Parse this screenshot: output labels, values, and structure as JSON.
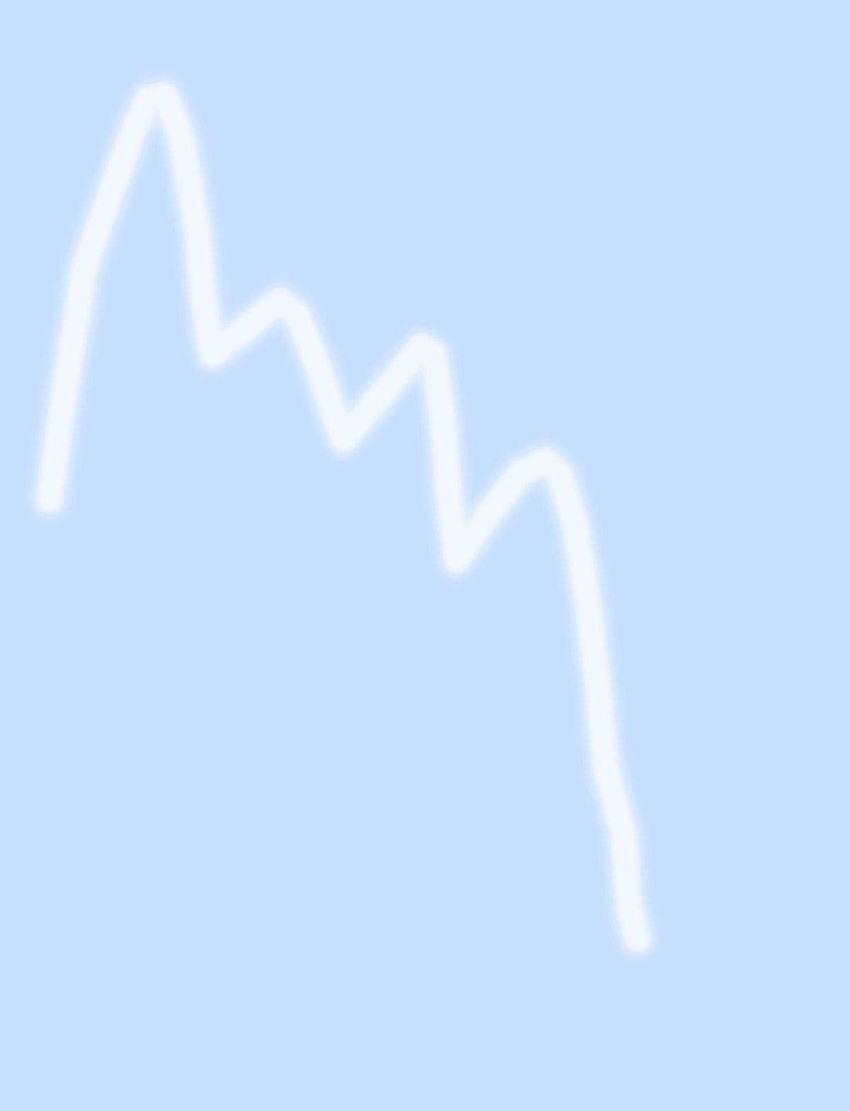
{
  "canvas": {
    "background_color": "#c6dffd",
    "stroke_color": "#f3f7ff"
  }
}
